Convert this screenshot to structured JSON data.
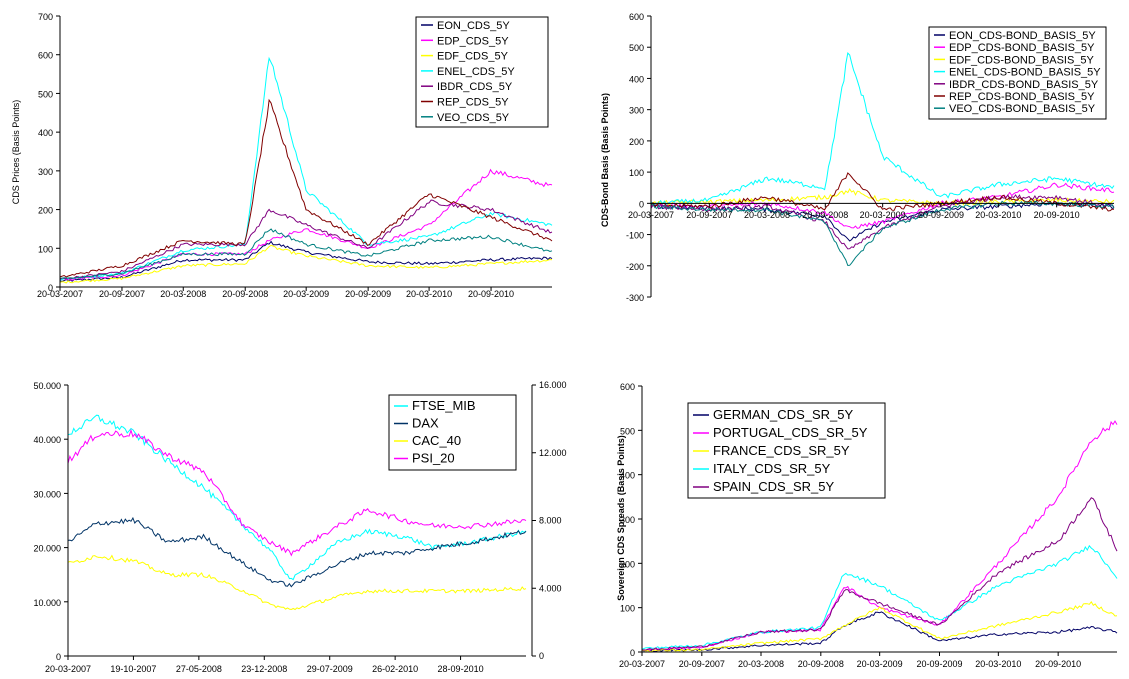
{
  "chart_data": [
    {
      "id": "c1",
      "type": "line",
      "title": "",
      "ylabel": "CDS Prices (Basis Points)",
      "xlabel": "",
      "ylim": [
        0,
        700
      ],
      "yticks": [
        "0",
        "100",
        "200",
        "300",
        "400",
        "500",
        "600",
        "700"
      ],
      "xticks": [
        "20-03-2007",
        "20-09-2007",
        "20-03-2008",
        "20-09-2008",
        "20-03-2009",
        "20-09-2009",
        "20-03-2010",
        "20-09-2010"
      ],
      "x": [
        "20-03-2007",
        "20-09-2007",
        "20-03-2008",
        "20-09-2008",
        "01-12-2008",
        "20-03-2009",
        "20-09-2009",
        "20-03-2010",
        "20-09-2010",
        "20-03-2011"
      ],
      "series": [
        {
          "name": "EON_CDS_5Y",
          "color": "#000066",
          "values": [
            15,
            25,
            70,
            70,
            115,
            90,
            65,
            60,
            70,
            75
          ]
        },
        {
          "name": "EDP_CDS_5Y",
          "color": "#ff00ff",
          "values": [
            18,
            30,
            85,
            85,
            120,
            150,
            100,
            160,
            300,
            260
          ]
        },
        {
          "name": "EDF_CDS_5Y",
          "color": "#ffff00",
          "values": [
            12,
            22,
            55,
            60,
            105,
            80,
            55,
            50,
            60,
            70
          ]
        },
        {
          "name": "ENEL_CDS_5Y",
          "color": "#00ffff",
          "values": [
            20,
            35,
            95,
            110,
            600,
            250,
            110,
            130,
            190,
            160
          ]
        },
        {
          "name": "IBDR_CDS_5Y",
          "color": "#800080",
          "values": [
            20,
            40,
            110,
            110,
            200,
            160,
            100,
            220,
            200,
            140
          ]
        },
        {
          "name": "REP_CDS_5Y",
          "color": "#800000",
          "values": [
            25,
            55,
            120,
            110,
            480,
            200,
            110,
            240,
            180,
            120
          ]
        },
        {
          "name": "VEO_CDS_5Y",
          "color": "#008080",
          "values": [
            20,
            35,
            85,
            85,
            150,
            110,
            80,
            120,
            130,
            90
          ]
        }
      ]
    },
    {
      "id": "c2",
      "type": "line",
      "title": "",
      "ylabel": "CDS-Bond Basis (Basis Points)",
      "xlabel": "",
      "ylim": [
        -300,
        600
      ],
      "yticks": [
        "-300",
        "-200",
        "-100",
        "0",
        "100",
        "200",
        "300",
        "400",
        "500",
        "600"
      ],
      "xticks": [
        "20-03-2007",
        "20-09-2007",
        "20-03-2008",
        "20-09-2008",
        "20-03-2009",
        "20-09-2009",
        "20-03-2010",
        "20-09-2010"
      ],
      "x": [
        "20-03-2007",
        "20-09-2007",
        "20-03-2008",
        "20-09-2008",
        "01-12-2008",
        "20-03-2009",
        "20-09-2009",
        "20-03-2010",
        "20-09-2010",
        "20-03-2011"
      ],
      "series": [
        {
          "name": "EON_CDS-BOND_BASIS_5Y",
          "color": "#000066",
          "values": [
            -10,
            -15,
            -20,
            -40,
            -120,
            -60,
            -20,
            -10,
            0,
            -10
          ]
        },
        {
          "name": "EDP_CDS-BOND_BASIS_5Y",
          "color": "#ff00ff",
          "values": [
            -5,
            -10,
            0,
            -30,
            -80,
            -60,
            0,
            20,
            60,
            40
          ]
        },
        {
          "name": "EDF_CDS-BOND_BASIS_5Y",
          "color": "#ffff00",
          "values": [
            0,
            5,
            10,
            20,
            40,
            10,
            0,
            5,
            10,
            5
          ]
        },
        {
          "name": "ENEL_CDS-BOND_BASIS_5Y",
          "color": "#00ffff",
          "values": [
            0,
            10,
            80,
            50,
            480,
            150,
            20,
            60,
            80,
            50
          ]
        },
        {
          "name": "IBDR_CDS-BOND_BASIS_5Y",
          "color": "#800080",
          "values": [
            -10,
            -20,
            -10,
            -60,
            -150,
            -80,
            -10,
            20,
            20,
            -10
          ]
        },
        {
          "name": "REP_CDS-BOND_BASIS_5Y",
          "color": "#800000",
          "values": [
            -5,
            -10,
            20,
            -20,
            100,
            -20,
            0,
            20,
            0,
            -20
          ]
        },
        {
          "name": "VEO_CDS-BOND_BASIS_5Y",
          "color": "#008080",
          "values": [
            -10,
            -20,
            -20,
            -60,
            -200,
            -80,
            -20,
            0,
            0,
            -10
          ]
        }
      ]
    },
    {
      "id": "c3",
      "type": "line",
      "title": "",
      "ylabel": "",
      "xlabel": "",
      "ylim": [
        0,
        50000
      ],
      "y2lim": [
        0,
        16000
      ],
      "yticks": [
        "0",
        "10.000",
        "20.000",
        "30.000",
        "40.000",
        "50.000"
      ],
      "y2ticks": [
        "0",
        "4.000",
        "8.000",
        "12.000",
        "16.000"
      ],
      "xticks": [
        "20-03-2007",
        "19-10-2007",
        "27-05-2008",
        "23-12-2008",
        "29-07-2009",
        "26-02-2010",
        "28-09-2010"
      ],
      "x": [
        "20-03-2007",
        "20-06-2007",
        "19-10-2007",
        "01-02-2008",
        "27-05-2008",
        "01-10-2008",
        "23-12-2008",
        "01-03-2009",
        "29-07-2009",
        "01-11-2009",
        "26-02-2010",
        "01-06-2010",
        "28-09-2010",
        "20-03-2011"
      ],
      "series": [
        {
          "name": "FTSE_MIB",
          "color": "#00ffff",
          "values": [
            41000,
            44000,
            41000,
            36000,
            31000,
            24000,
            19500,
            14000,
            21000,
            23000,
            22000,
            20000,
            21000,
            23000
          ]
        },
        {
          "name": "DAX",
          "color": "#003366",
          "values": [
            21000,
            24500,
            25000,
            21000,
            22000,
            17000,
            14000,
            13000,
            17000,
            19000,
            19000,
            20000,
            21000,
            23000
          ]
        },
        {
          "name": "CAC_40",
          "color": "#ffff00",
          "values": [
            17000,
            18500,
            17500,
            15000,
            15000,
            12000,
            9500,
            8500,
            11000,
            12000,
            12000,
            12000,
            12000,
            12500
          ]
        },
        {
          "name": "PSI_20",
          "color": "#ff00ff",
          "values": [
            36000,
            41000,
            41000,
            37000,
            34000,
            24000,
            21000,
            19000,
            24000,
            27000,
            25000,
            24000,
            24000,
            25000
          ]
        }
      ]
    },
    {
      "id": "c4",
      "type": "line",
      "title": "",
      "ylabel": "Sovereign CDS Spreads (Basis Points)",
      "xlabel": "",
      "ylim": [
        0,
        600
      ],
      "yticks": [
        "0",
        "100",
        "200",
        "300",
        "400",
        "500",
        "600"
      ],
      "xticks": [
        "20-03-2007",
        "20-09-2007",
        "20-03-2008",
        "20-09-2008",
        "20-03-2009",
        "20-09-2009",
        "20-03-2010",
        "20-09-2010"
      ],
      "x": [
        "20-03-2007",
        "20-09-2007",
        "20-03-2008",
        "20-09-2008",
        "01-12-2008",
        "20-03-2009",
        "20-09-2009",
        "20-03-2010",
        "20-09-2010",
        "01-01-2011",
        "20-03-2011"
      ],
      "series": [
        {
          "name": "GERMAN_CDS_SR_5Y",
          "color": "#000066",
          "values": [
            3,
            5,
            15,
            20,
            60,
            90,
            25,
            40,
            45,
            55,
            45
          ]
        },
        {
          "name": "PORTUGAL_CDS_SR_5Y",
          "color": "#ff00ff",
          "values": [
            5,
            10,
            45,
            50,
            150,
            100,
            60,
            200,
            350,
            480,
            520
          ]
        },
        {
          "name": "FRANCE_CDS_SR_5Y",
          "color": "#ffff00",
          "values": [
            3,
            5,
            20,
            30,
            60,
            100,
            30,
            60,
            90,
            110,
            80
          ]
        },
        {
          "name": "ITALY_CDS_SR_5Y",
          "color": "#00ffff",
          "values": [
            8,
            15,
            45,
            55,
            180,
            150,
            70,
            150,
            200,
            240,
            170
          ]
        },
        {
          "name": "SPAIN_CDS_SR_5Y",
          "color": "#800080",
          "values": [
            5,
            12,
            45,
            50,
            140,
            110,
            60,
            180,
            250,
            350,
            230
          ]
        }
      ]
    }
  ]
}
